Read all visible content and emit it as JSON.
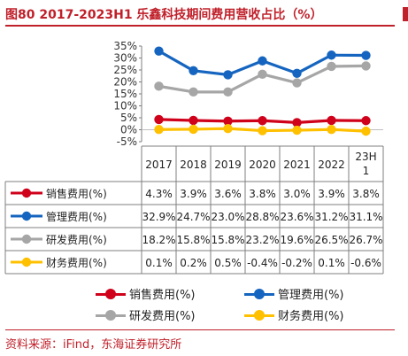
{
  "title": "图80  2017-2023H1 乐鑫科技期间费用营收占比（%）",
  "source": "资料来源：iFind，东海证券研究所",
  "chart_data": {
    "type": "line",
    "categories": [
      "2017",
      "2018",
      "2019",
      "2020",
      "2021",
      "2022",
      "23H1"
    ],
    "category_labels": [
      [
        "2017"
      ],
      [
        "2018"
      ],
      [
        "2019"
      ],
      [
        "2020"
      ],
      [
        "2021"
      ],
      [
        "2022"
      ],
      [
        "23H",
        "1"
      ]
    ],
    "ylim": [
      -5,
      35
    ],
    "yticks": [
      "-5%",
      "0%",
      "5%",
      "10%",
      "15%",
      "20%",
      "25%",
      "30%",
      "35%"
    ],
    "grid": false,
    "legend_placement": "bottom",
    "series": [
      {
        "name": "销售费用(%)",
        "color": "#d0021b",
        "values": [
          4.3,
          3.9,
          3.6,
          3.8,
          3.0,
          3.9,
          3.8
        ],
        "labels": [
          "4.3%",
          "3.9%",
          "3.6%",
          "3.8%",
          "3.0%",
          "3.9%",
          "3.8%"
        ]
      },
      {
        "name": "管理费用(%)",
        "color": "#1565c0",
        "values": [
          32.9,
          24.7,
          23.0,
          28.8,
          23.6,
          31.2,
          31.1
        ],
        "labels": [
          "32.9%",
          "24.7%",
          "23.0%",
          "28.8%",
          "23.6%",
          "31.2%",
          "31.1%"
        ]
      },
      {
        "name": "研发费用(%)",
        "color": "#a6a6a6",
        "values": [
          18.2,
          15.8,
          15.8,
          23.2,
          19.6,
          26.5,
          26.7
        ],
        "labels": [
          "18.2%",
          "15.8%",
          "15.8%",
          "23.2%",
          "19.6%",
          "26.5%",
          "26.7%"
        ]
      },
      {
        "name": "财务费用(%)",
        "color": "#ffc000",
        "values": [
          0.1,
          0.2,
          0.5,
          -0.4,
          -0.2,
          0.1,
          -0.6
        ],
        "labels": [
          "0.1%",
          "0.2%",
          "0.5%",
          "-0.4%",
          "-0.2%",
          "0.1%",
          "-0.6%"
        ]
      }
    ]
  }
}
